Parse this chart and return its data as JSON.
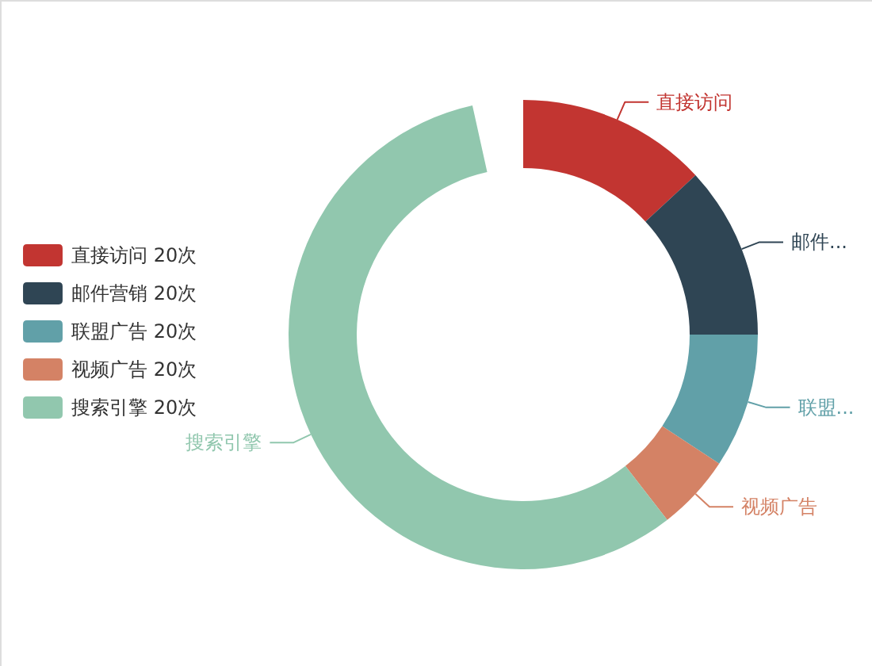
{
  "chart_data": {
    "type": "donut",
    "categories": [
      "直接访问 20次",
      "邮件营销 20次",
      "联盟广告 20次",
      "视频广告 20次",
      "搜索引擎 20次"
    ],
    "values": [
      13.6,
      12.3,
      9.6,
      5.4,
      59.1
    ],
    "colors": [
      "#c23531",
      "#2f4554",
      "#61a0a8",
      "#d48265",
      "#91c7ae"
    ],
    "annotations": [
      "直接访问",
      "邮件...",
      "联盟...",
      "视频广告",
      "搜索引擎"
    ],
    "legend": "left"
  }
}
